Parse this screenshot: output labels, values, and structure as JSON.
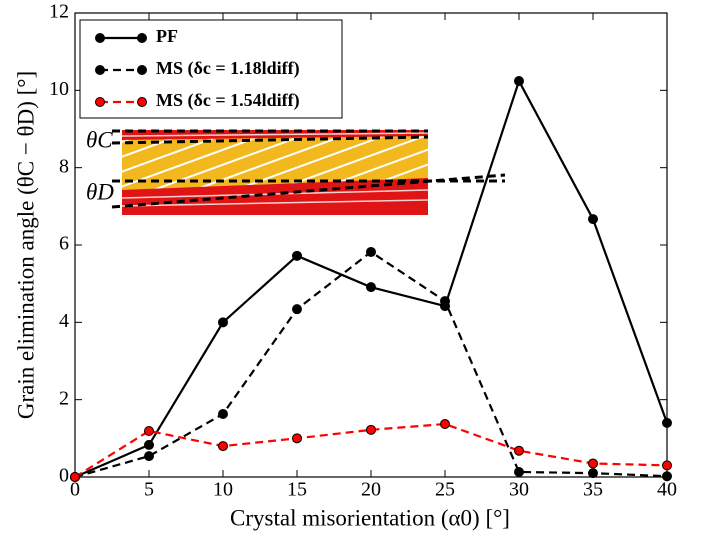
{
  "chart_data": {
    "type": "line",
    "xlabel": "Crystal misorientation (α0) [°]",
    "ylabel": "Grain elimination angle (θC − θD) [°]",
    "x": [
      0,
      5,
      10,
      15,
      20,
      25,
      30,
      35,
      40
    ],
    "series": [
      {
        "name": "PF",
        "color": "#000000",
        "linestyle": "solid",
        "values": [
          0,
          0.83,
          4.0,
          5.72,
          4.91,
          4.42,
          10.24,
          6.67,
          1.4
        ]
      },
      {
        "name": "MS (δc = 1.18ldiff)",
        "color": "#000000",
        "linestyle": "dashed",
        "values": [
          0,
          0.54,
          1.63,
          4.34,
          5.82,
          4.55,
          0.13,
          0.1,
          0.02
        ]
      },
      {
        "name": "MS (δc = 1.54ldiff)",
        "color": "#ff0000",
        "linestyle": "dashed",
        "values": [
          0,
          1.19,
          0.8,
          1.0,
          1.22,
          1.37,
          0.68,
          0.35,
          0.3
        ]
      }
    ],
    "xlim": [
      0,
      40
    ],
    "xticks": [
      0,
      5,
      10,
      15,
      20,
      25,
      30,
      35,
      40
    ],
    "ylim": [
      0,
      12
    ],
    "yticks": [
      0,
      2,
      4,
      6,
      8,
      10,
      12
    ],
    "legend": "upper left",
    "annotations": [
      "θC",
      "θD"
    ]
  }
}
